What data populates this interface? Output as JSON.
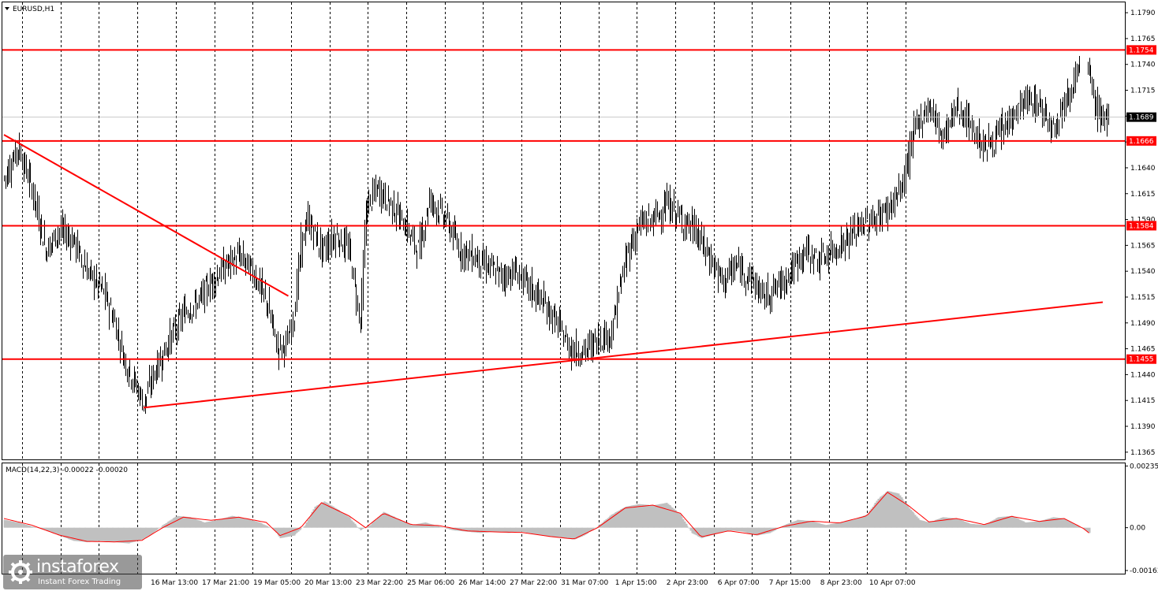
{
  "chart_data": [
    {
      "type": "line",
      "symbol_label": "EURUSD,H1",
      "price_axis_ticks": [
        1.179,
        1.1765,
        1.174,
        1.1715,
        1.169,
        1.1665,
        1.164,
        1.1615,
        1.159,
        1.1565,
        1.154,
        1.1515,
        1.149,
        1.1465,
        1.144,
        1.1415,
        1.139,
        1.1365
      ],
      "price_axis_tick_labels": [
        "1.1790",
        "1.1765",
        "1.1740",
        "1.1715",
        "1.1690",
        "1.1665",
        "1.1640",
        "1.1615",
        "1.1590",
        "1.1565",
        "1.1540",
        "1.1515",
        "1.1490",
        "1.1465",
        "1.1440",
        "1.1415",
        "1.1390",
        "1.1365"
      ],
      "ylim": [
        1.1358,
        1.18
      ],
      "horizontal_levels": [
        {
          "value": 1.1754,
          "label": "1.1754"
        },
        {
          "value": 1.1666,
          "label": "1.1666"
        },
        {
          "value": 1.1584,
          "label": "1.1584"
        },
        {
          "value": 1.1455,
          "label": "1.1455"
        }
      ],
      "current_price": {
        "value": 1.1689,
        "label": "1.1689"
      },
      "time_axis_labels": [
        "16 Mar 13:00",
        "17 Mar 21:00",
        "19 Mar 05:00",
        "20 Mar 13:00",
        "23 Mar 22:00",
        "25 Mar 06:00",
        "26 Mar 14:00",
        "27 Mar 22:00",
        "31 Mar 07:00",
        "1 Apr 15:00",
        "2 Apr 23:00",
        "6 Apr 07:00",
        "7 Apr 15:00",
        "8 Apr 23:00",
        "10 Apr 07:00"
      ],
      "trendlines": [
        {
          "from": {
            "bar": 0,
            "price": 1.1672
          },
          "to": {
            "bar": 206,
            "price": 1.1516
          }
        },
        {
          "from": {
            "bar": 101,
            "price": 1.1408
          },
          "to": {
            "bar": 796,
            "price": 1.151
          }
        }
      ],
      "price_path": [
        [
          0,
          1.163
        ],
        [
          10,
          1.166
        ],
        [
          20,
          1.162
        ],
        [
          30,
          1.156
        ],
        [
          40,
          1.158
        ],
        [
          50,
          1.157
        ],
        [
          60,
          1.154
        ],
        [
          72,
          1.152
        ],
        [
          80,
          1.149
        ],
        [
          88,
          1.145
        ],
        [
          95,
          1.143
        ],
        [
          101,
          1.1412
        ],
        [
          108,
          1.144
        ],
        [
          115,
          1.146
        ],
        [
          122,
          1.148
        ],
        [
          130,
          1.15
        ],
        [
          140,
          1.151
        ],
        [
          150,
          1.153
        ],
        [
          160,
          1.1545
        ],
        [
          170,
          1.1555
        ],
        [
          180,
          1.154
        ],
        [
          190,
          1.151
        ],
        [
          198,
          1.1465
        ],
        [
          205,
          1.147
        ],
        [
          210,
          1.15
        ],
        [
          215,
          1.1565
        ],
        [
          220,
          1.159
        ],
        [
          230,
          1.156
        ],
        [
          240,
          1.1575
        ],
        [
          250,
          1.156
        ],
        [
          258,
          1.149
        ],
        [
          262,
          1.16
        ],
        [
          270,
          1.162
        ],
        [
          280,
          1.1605
        ],
        [
          290,
          1.1585
        ],
        [
          300,
          1.156
        ],
        [
          308,
          1.161
        ],
        [
          320,
          1.159
        ],
        [
          330,
          1.156
        ],
        [
          340,
          1.1555
        ],
        [
          350,
          1.1545
        ],
        [
          360,
          1.1535
        ],
        [
          370,
          1.154
        ],
        [
          380,
          1.1525
        ],
        [
          390,
          1.151
        ],
        [
          400,
          1.149
        ],
        [
          410,
          1.1465
        ],
        [
          420,
          1.1462
        ],
        [
          430,
          1.1475
        ],
        [
          440,
          1.148
        ],
        [
          445,
          1.152
        ],
        [
          452,
          1.156
        ],
        [
          460,
          1.1585
        ],
        [
          470,
          1.159
        ],
        [
          480,
          1.1605
        ],
        [
          490,
          1.159
        ],
        [
          500,
          1.158
        ],
        [
          510,
          1.1555
        ],
        [
          520,
          1.153
        ],
        [
          530,
          1.1545
        ],
        [
          540,
          1.1535
        ],
        [
          550,
          1.1515
        ],
        [
          560,
          1.1525
        ],
        [
          570,
          1.154
        ],
        [
          580,
          1.156
        ],
        [
          590,
          1.155
        ],
        [
          600,
          1.156
        ],
        [
          610,
          1.157
        ],
        [
          620,
          1.1585
        ],
        [
          630,
          1.159
        ],
        [
          640,
          1.16
        ],
        [
          650,
          1.162
        ],
        [
          660,
          1.168
        ],
        [
          670,
          1.17
        ],
        [
          680,
          1.167
        ],
        [
          690,
          1.17
        ],
        [
          700,
          1.168
        ],
        [
          710,
          1.166
        ],
        [
          720,
          1.167
        ],
        [
          730,
          1.169
        ],
        [
          740,
          1.1705
        ],
        [
          750,
          1.17
        ],
        [
          760,
          1.168
        ],
        [
          770,
          1.171
        ],
        [
          780,
          1.174
        ],
        [
          786,
          1.173
        ],
        [
          790,
          1.17
        ],
        [
          795,
          1.169
        ],
        [
          800,
          1.1689
        ]
      ]
    },
    {
      "type": "area",
      "indicator_label": "MACD(14,22,3) -0.00022 -0.00020",
      "y_tick_labels": [
        "0.00235",
        "0.00",
        "-0.00163"
      ],
      "y_ticks": [
        0.00235,
        0.0,
        -0.00163
      ],
      "ylim": [
        -0.00175,
        0.00245
      ],
      "histogram": [
        [
          0,
          0.0003
        ],
        [
          10,
          0.0002
        ],
        [
          20,
          5e-05
        ],
        [
          30,
          -0.0001
        ],
        [
          40,
          -0.0003
        ],
        [
          50,
          -0.0005
        ],
        [
          60,
          -0.00055
        ],
        [
          70,
          -0.0005
        ],
        [
          80,
          -0.00055
        ],
        [
          90,
          -0.0006
        ],
        [
          100,
          -0.00045
        ],
        [
          108,
          -0.0002
        ],
        [
          115,
          0.0001
        ],
        [
          125,
          0.00045
        ],
        [
          135,
          0.0004
        ],
        [
          145,
          0.0002
        ],
        [
          155,
          0.0003
        ],
        [
          165,
          0.00045
        ],
        [
          175,
          0.00035
        ],
        [
          185,
          0.0002
        ],
        [
          195,
          -5e-05
        ],
        [
          200,
          -0.0004
        ],
        [
          210,
          -0.0003
        ],
        [
          218,
          0.0001
        ],
        [
          225,
          0.0008
        ],
        [
          232,
          0.001
        ],
        [
          240,
          0.00075
        ],
        [
          250,
          0.0004
        ],
        [
          258,
          -0.0001
        ],
        [
          265,
          0.0001
        ],
        [
          275,
          0.0006
        ],
        [
          285,
          0.00035
        ],
        [
          295,
          0.0001
        ],
        [
          305,
          0.0002
        ],
        [
          315,
          5e-05
        ],
        [
          325,
          -0.0001
        ],
        [
          335,
          -0.00015
        ],
        [
          345,
          -0.0002
        ],
        [
          355,
          -0.00015
        ],
        [
          365,
          -0.0002
        ],
        [
          375,
          -0.00015
        ],
        [
          385,
          -0.00025
        ],
        [
          395,
          -0.00035
        ],
        [
          405,
          -0.0004
        ],
        [
          413,
          -0.00045
        ],
        [
          420,
          -0.0003
        ],
        [
          430,
          5e-05
        ],
        [
          440,
          0.0005
        ],
        [
          450,
          0.0008
        ],
        [
          460,
          0.0009
        ],
        [
          470,
          0.00085
        ],
        [
          480,
          0.00095
        ],
        [
          490,
          0.0005
        ],
        [
          498,
          -0.0002
        ],
        [
          505,
          -0.0004
        ],
        [
          515,
          -0.00025
        ],
        [
          525,
          -0.0001
        ],
        [
          535,
          -0.00015
        ],
        [
          545,
          -0.0003
        ],
        [
          555,
          -0.0002
        ],
        [
          565,
          0.0001
        ],
        [
          575,
          0.0003
        ],
        [
          585,
          0.00025
        ],
        [
          595,
          0.0001
        ],
        [
          605,
          0.0002
        ],
        [
          615,
          0.0003
        ],
        [
          625,
          0.0005
        ],
        [
          633,
          0.0011
        ],
        [
          640,
          0.0014
        ],
        [
          648,
          0.0013
        ],
        [
          655,
          0.0008
        ],
        [
          663,
          0.0003
        ],
        [
          670,
          0.0002
        ],
        [
          680,
          0.0004
        ],
        [
          690,
          0.00035
        ],
        [
          700,
          0.00015
        ],
        [
          710,
          0.0001
        ],
        [
          720,
          0.0004
        ],
        [
          730,
          0.00045
        ],
        [
          740,
          0.0002
        ],
        [
          750,
          0.00025
        ],
        [
          760,
          0.0004
        ],
        [
          768,
          0.00035
        ],
        [
          775,
          0.00015
        ],
        [
          782,
          -5e-05
        ],
        [
          786,
          -0.0002
        ]
      ],
      "signal": [
        [
          0,
          0.00035
        ],
        [
          20,
          0.0001
        ],
        [
          40,
          -0.00028
        ],
        [
          60,
          -0.00052
        ],
        [
          80,
          -0.00054
        ],
        [
          100,
          -0.00048
        ],
        [
          115,
          0.0
        ],
        [
          130,
          0.0004
        ],
        [
          150,
          0.00028
        ],
        [
          170,
          0.0004
        ],
        [
          190,
          0.0002
        ],
        [
          200,
          -0.0003
        ],
        [
          215,
          0.0
        ],
        [
          230,
          0.00095
        ],
        [
          250,
          0.00045
        ],
        [
          262,
          0.0
        ],
        [
          275,
          0.00055
        ],
        [
          295,
          0.00012
        ],
        [
          315,
          8e-05
        ],
        [
          335,
          -0.00012
        ],
        [
          355,
          -0.00016
        ],
        [
          375,
          -0.00018
        ],
        [
          395,
          -0.00033
        ],
        [
          413,
          -0.00043
        ],
        [
          430,
          0.0
        ],
        [
          450,
          0.00075
        ],
        [
          470,
          0.00086
        ],
        [
          490,
          0.00055
        ],
        [
          505,
          -0.00035
        ],
        [
          525,
          -0.00012
        ],
        [
          545,
          -0.00027
        ],
        [
          565,
          5e-05
        ],
        [
          585,
          0.00025
        ],
        [
          605,
          0.00018
        ],
        [
          625,
          0.00045
        ],
        [
          640,
          0.00135
        ],
        [
          655,
          0.00085
        ],
        [
          670,
          0.00022
        ],
        [
          690,
          0.00035
        ],
        [
          710,
          0.00012
        ],
        [
          730,
          0.00043
        ],
        [
          750,
          0.00024
        ],
        [
          768,
          0.00035
        ],
        [
          782,
          -3e-05
        ],
        [
          786,
          -0.0002
        ]
      ]
    }
  ],
  "watermark": {
    "brand": "instaforex",
    "tagline": "Instant Forex Trading"
  },
  "colors": {
    "level_line": "#ff0000",
    "bars": "#000000",
    "histogram": "#c0c0c0",
    "signal": "#ff0000",
    "grid": "#000000",
    "background": "#ffffff"
  }
}
